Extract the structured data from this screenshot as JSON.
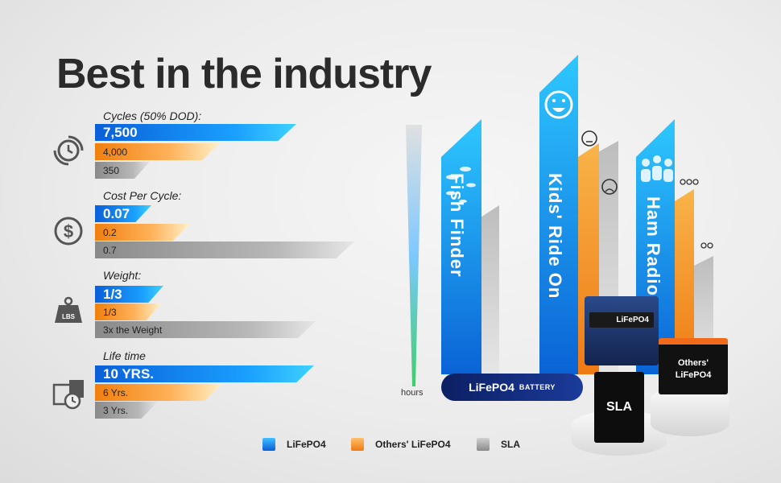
{
  "title": "Best in the industry",
  "metrics": [
    {
      "label": "Cycles (50% DOD):",
      "icon": "cycle-icon",
      "values": [
        "7,500",
        "4,000",
        "350"
      ]
    },
    {
      "label": "Cost Per Cycle:",
      "icon": "dollar-icon",
      "values": [
        "0.07",
        "0.2",
        "0.7"
      ]
    },
    {
      "label": "Weight:",
      "icon": "weight-icon",
      "values": [
        "1/3",
        "1/3",
        "3x the Weight"
      ]
    },
    {
      "label": "Life time",
      "icon": "calendar-clock-icon",
      "values": [
        "10 YRS.",
        "6 Yrs.",
        "3 Yrs."
      ]
    }
  ],
  "chart_data": {
    "type": "bar",
    "categories": [
      "Fish Finder",
      "Kids' Ride On",
      "Ham Radio"
    ],
    "series": [
      {
        "name": "LiFePO4",
        "color": "#1e88f0"
      },
      {
        "name": "Others' LiFePO4",
        "color": "#f39a2e"
      },
      {
        "name": "SLA",
        "color": "#a8a8a8"
      }
    ],
    "ylabel": "hours"
  },
  "banner": {
    "main": "LiFePO4",
    "sub": "BATTERY"
  },
  "products": {
    "lifepo4": "LiFePO4",
    "sla": "SLA",
    "others": "Others' LiFePO4"
  },
  "legend": [
    "LiFePO4",
    "Others' LiFePO4",
    "SLA"
  ],
  "colors": {
    "blue": "#1e88f0",
    "orange": "#f39a2e",
    "gray": "#a8a8a8"
  }
}
